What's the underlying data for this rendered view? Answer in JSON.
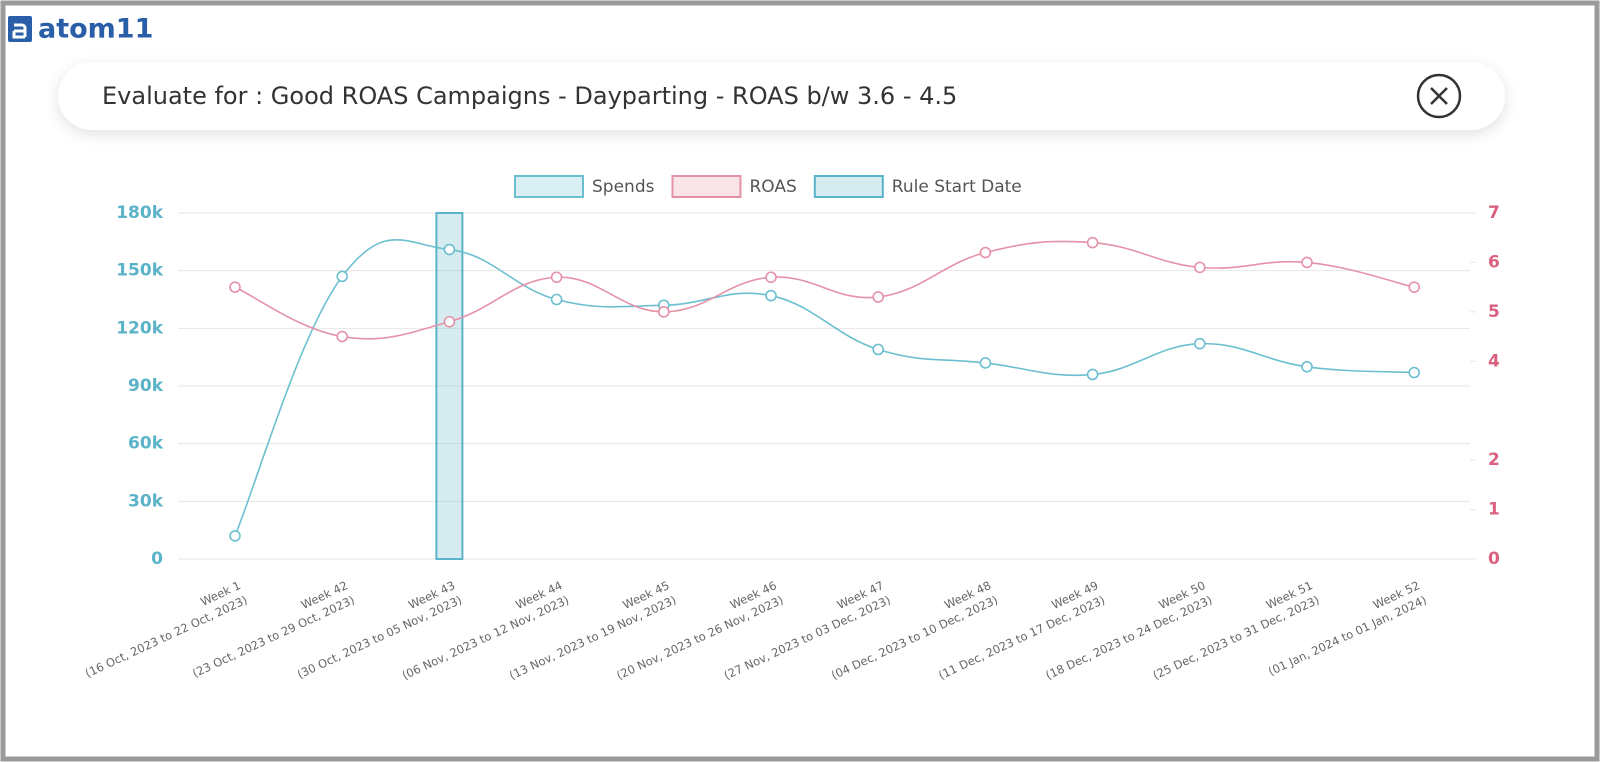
{
  "header": {
    "logo": "atom11",
    "title": "Evaluate for : Good ROAS Campaigns - Dayparting - ROAS b/w 3.6 - 4.5"
  },
  "chart_data": {
    "type": "line",
    "categories": [
      [
        "Week 1",
        "(16 Oct, 2023 to 22 Oct, 2023)"
      ],
      [
        "Week 42",
        "(23 Oct, 2023 to 29 Oct, 2023)"
      ],
      [
        "Week 43",
        "(30 Oct, 2023 to 05 Nov, 2023)"
      ],
      [
        "Week 44",
        "(06 Nov, 2023 to 12 Nov, 2023)"
      ],
      [
        "Week 45",
        "(13 Nov, 2023 to 19 Nov, 2023)"
      ],
      [
        "Week 46",
        "(20 Nov, 2023 to 26 Nov, 2023)"
      ],
      [
        "Week 47",
        "(27 Nov, 2023 to 03 Dec, 2023)"
      ],
      [
        "Week 48",
        "(04 Dec, 2023 to 10 Dec, 2023)"
      ],
      [
        "Week 49",
        "(11 Dec, 2023 to 17 Dec, 2023)"
      ],
      [
        "Week 50",
        "(18 Dec, 2023 to 24 Dec, 2023)"
      ],
      [
        "Week 51",
        "(25 Dec, 2023 to 31 Dec, 2023)"
      ],
      [
        "Week 52",
        "(01 Jan, 2024 to 01 Jan, 2024)"
      ]
    ],
    "series": [
      {
        "name": "Spends",
        "type": "line",
        "color": "#6cbfd0",
        "values": [
          12000,
          147000,
          161000,
          135000,
          132000,
          137000,
          109000,
          102000,
          96000,
          112000,
          100000,
          97000
        ]
      },
      {
        "name": "ROAS",
        "type": "line",
        "axis": "y2",
        "color": "#e592a8",
        "values": [
          5.5,
          4.5,
          4.8,
          5.7,
          5.0,
          5.7,
          5.3,
          6.2,
          6.4,
          5.9,
          6.0,
          5.5
        ]
      },
      {
        "name": "Rule Start Date",
        "type": "bar",
        "color": "#5ab3c8",
        "values": [
          null,
          null,
          180000,
          null,
          null,
          null,
          null,
          null,
          null,
          null,
          null,
          null
        ]
      }
    ],
    "ylim": [
      0,
      180000
    ],
    "yticks": [
      0,
      {
        "value": 30000,
        "label": "30k"
      },
      {
        "value": 60000,
        "label": "60k"
      },
      {
        "value": 90000,
        "label": "90k"
      },
      {
        "value": 120000,
        "label": "120k"
      },
      {
        "value": 150000,
        "label": "150k"
      },
      {
        "value": 180000,
        "label": "180k"
      }
    ],
    "y2lim": [
      0,
      7
    ],
    "y2ticks": [
      0,
      1,
      2,
      4,
      5,
      6,
      7
    ],
    "grid": true,
    "legend": "top"
  }
}
